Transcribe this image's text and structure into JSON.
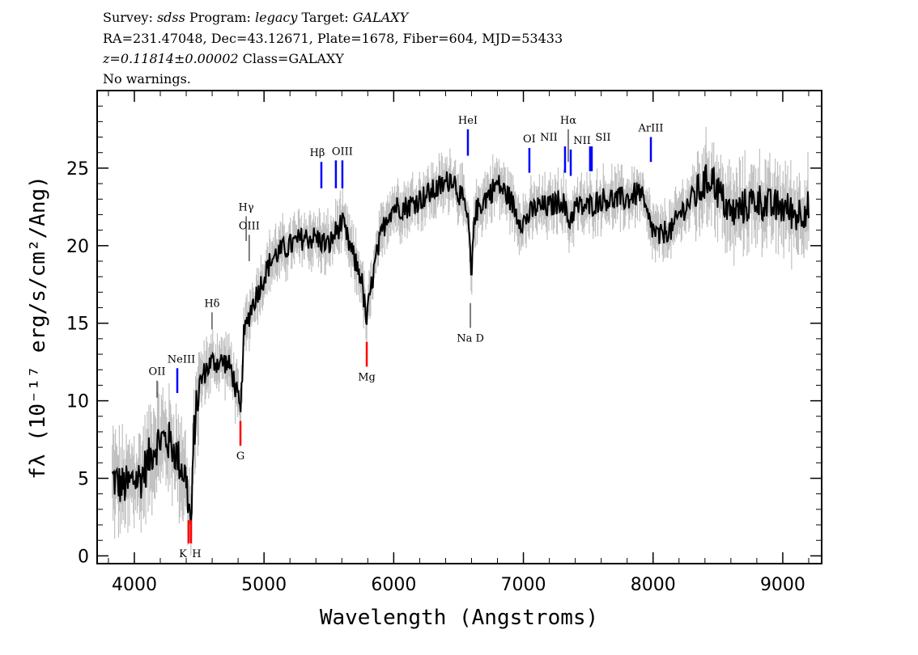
{
  "header": {
    "line1": {
      "survey_label": "Survey: ",
      "survey": "sdss",
      "program_label": " Program: ",
      "program": "legacy",
      "target_label": " Target: ",
      "target": "GALAXY"
    },
    "line2": "RA=231.47048, Dec=43.12671, Plate=1678, Fiber=604, MJD=53433",
    "line3": {
      "z": "z=0.11814±0.00002",
      "class": " Class=GALAXY"
    },
    "line4": "No warnings."
  },
  "chart_data": {
    "type": "line",
    "xlabel": "Wavelength (Angstroms)",
    "ylabel": "fλ (10⁻¹⁷ erg/s/cm²/Ang)",
    "xlim": [
      3713,
      9300
    ],
    "ylim": [
      -0.5,
      30
    ],
    "xticks": [
      4000,
      5000,
      6000,
      7000,
      8000,
      9000
    ],
    "yticks": [
      0,
      5,
      10,
      15,
      20,
      25
    ],
    "grid": false,
    "colors": {
      "flux": "#000000",
      "error_band": "#c0c0c0",
      "emission": "#0000ff",
      "absorption": "#ff0000",
      "sky": "#000000"
    },
    "series": [
      {
        "x": [
          3830,
          3900,
          3950,
          4000,
          4050,
          4100,
          4150,
          4200,
          4250,
          4300,
          4350,
          4400,
          4420,
          4440,
          4460,
          4500,
          4550,
          4600,
          4650,
          4700,
          4750,
          4800,
          4820,
          4840,
          4900,
          4950,
          5000,
          5050,
          5100,
          5200,
          5300,
          5400,
          5500,
          5560,
          5600,
          5700,
          5750,
          5790,
          5820,
          5860,
          5900,
          5950,
          6000,
          6100,
          6200,
          6300,
          6400,
          6450,
          6500,
          6550,
          6580,
          6600,
          6620,
          6700,
          6800,
          6850,
          6900,
          6950,
          7000,
          7050,
          7100,
          7200,
          7300,
          7350,
          7400,
          7450,
          7500,
          7600,
          7700,
          7800,
          7900,
          7950,
          8000,
          8050,
          8100,
          8150,
          8200,
          8300,
          8400,
          8450,
          8500,
          8600,
          8700,
          8800,
          8900,
          9000,
          9100,
          9200
        ],
        "y": [
          5,
          4.5,
          4.5,
          5,
          5,
          6,
          7,
          7.5,
          7.5,
          7,
          6,
          5,
          3,
          2,
          8,
          11,
          12,
          12.5,
          12.5,
          12.5,
          12,
          10,
          9,
          14,
          16,
          17,
          18,
          19,
          19.5,
          20,
          20.5,
          20.5,
          20,
          21,
          21.5,
          19,
          18,
          15,
          17,
          19,
          20.5,
          22,
          22.5,
          22.5,
          23,
          23.5,
          24,
          24.5,
          23.5,
          22.5,
          21,
          17.5,
          22,
          23,
          24,
          23.5,
          23,
          22,
          21.5,
          22,
          22.5,
          22.5,
          23,
          21.5,
          22.5,
          22.5,
          22.5,
          23,
          23,
          23,
          23.5,
          22,
          21,
          20.5,
          21,
          21,
          22,
          23,
          24,
          24.5,
          23.5,
          22,
          22.5,
          23,
          22.5,
          22.5,
          22,
          22.5
        ]
      }
    ],
    "lines": [
      {
        "label": "OII",
        "wave": 4175,
        "type": "sky",
        "y": [
          11.3,
          10.2
        ],
        "label_pos": "above"
      },
      {
        "label": "NeIII",
        "wave": 4331,
        "type": "emission",
        "y": [
          12.1,
          10.5
        ],
        "label_pos": "above"
      },
      {
        "label": "K",
        "wave": 4418,
        "type": "absorption",
        "y": [
          2.3,
          0.8
        ],
        "label_pos": "below"
      },
      {
        "label": "H",
        "wave": 4437,
        "type": "absorption",
        "y": [
          2.3,
          0.8
        ],
        "label_pos": "below"
      },
      {
        "label": "Hδ",
        "wave": 4599,
        "type": "sky",
        "y": [
          15.7,
          14.6
        ],
        "label_pos": "above"
      },
      {
        "label": "G",
        "wave": 4818,
        "type": "absorption",
        "y": [
          8.7,
          7.1
        ],
        "label_pos": "below"
      },
      {
        "label": "Hγ",
        "wave": 4862,
        "type": "sky",
        "y": [
          21.9,
          20.3
        ],
        "label_pos": "above"
      },
      {
        "label": "OIII",
        "wave": 4886,
        "type": "sky",
        "y": [
          20.7,
          19.0
        ],
        "label_pos": "above"
      },
      {
        "label": "Hβ",
        "wave": 5442,
        "type": "emission",
        "y": [
          25.4,
          23.7
        ],
        "label_pos": "above"
      },
      {
        "label": "",
        "wave": 5554,
        "type": "emission",
        "y": [
          25.5,
          23.7
        ],
        "label_pos": "above"
      },
      {
        "label": "OIII",
        "wave": 5604,
        "type": "emission",
        "y": [
          25.5,
          23.7
        ],
        "label_pos": "above"
      },
      {
        "label": "Mg",
        "wave": 5792,
        "type": "absorption",
        "y": [
          13.8,
          12.2
        ],
        "label_pos": "below"
      },
      {
        "label": "HeI",
        "wave": 6572,
        "type": "emission",
        "y": [
          27.5,
          25.8
        ],
        "label_pos": "above"
      },
      {
        "label": "Na D",
        "wave": 6591,
        "type": "sky",
        "y": [
          16.3,
          14.7
        ],
        "label_pos": "below"
      },
      {
        "label": "OI",
        "wave": 7046,
        "type": "emission",
        "y": [
          26.3,
          24.7
        ],
        "label_pos": "above"
      },
      {
        "label": "NII",
        "wave": 7321,
        "type": "emission",
        "y": [
          26.4,
          24.7
        ],
        "label_pos": "above"
      },
      {
        "label": "Hα",
        "wave": 7346,
        "type": "sky",
        "y": [
          27.5,
          25.4
        ],
        "label_pos": "above"
      },
      {
        "label": "NII",
        "wave": 7365,
        "type": "emission",
        "y": [
          26.2,
          24.5
        ],
        "label_pos": "above"
      },
      {
        "label": "",
        "wave": 7514,
        "type": "emission",
        "y": [
          26.4,
          24.8
        ],
        "label_pos": "above"
      },
      {
        "label": "SII",
        "wave": 7527,
        "type": "emission",
        "y": [
          26.4,
          24.8
        ],
        "label_pos": "above"
      },
      {
        "label": "ArIII",
        "wave": 7983,
        "type": "emission",
        "y": [
          27.0,
          25.4
        ],
        "label_pos": "above"
      }
    ]
  }
}
